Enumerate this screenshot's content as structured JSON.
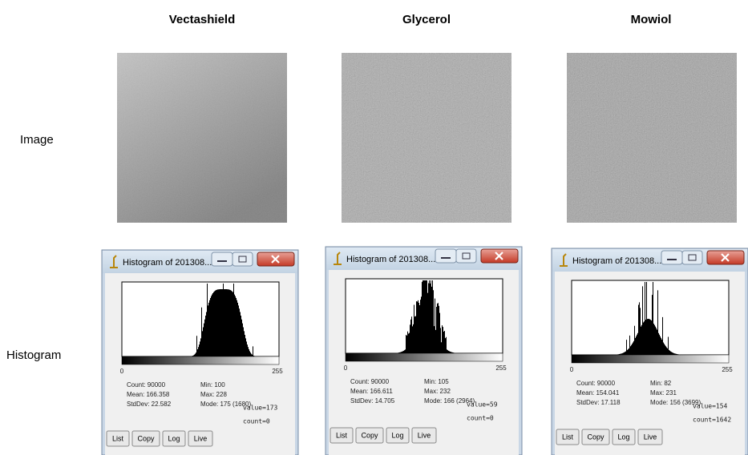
{
  "columns": [
    {
      "heading": "Vectashield",
      "histogram": {
        "window_title": "Histogram of 201308...",
        "axis_min": "0",
        "axis_max": "255",
        "stats_left": [
          "Count: 90000",
          "Mean: 166.358",
          "StdDev: 22.582"
        ],
        "stats_right": [
          "Min: 100",
          "Max: 228",
          "Mode: 175 (1680)"
        ],
        "buttons": [
          "List",
          "Copy",
          "Log",
          "Live"
        ],
        "value": "value=173",
        "count": "count=0"
      }
    },
    {
      "heading": "Glycerol",
      "histogram": {
        "window_title": "Histogram of 201308...",
        "axis_min": "0",
        "axis_max": "255",
        "stats_left": [
          "Count: 90000",
          "Mean: 166.611",
          "StdDev: 14.705"
        ],
        "stats_right": [
          "Min: 105",
          "Max: 232",
          "Mode: 166 (2964)"
        ],
        "buttons": [
          "List",
          "Copy",
          "Log",
          "Live"
        ],
        "value": "value=59",
        "count": "count=0"
      }
    },
    {
      "heading": "Mowiol",
      "histogram": {
        "window_title": "Histogram of 201308...",
        "axis_min": "0",
        "axis_max": "255",
        "stats_left": [
          "Count: 90000",
          "Mean: 154.041",
          "StdDev: 17.118"
        ],
        "stats_right": [
          "Min: 82",
          "Max: 231",
          "Mode: 156 (3699)"
        ],
        "buttons": [
          "List",
          "Copy",
          "Log",
          "Live"
        ],
        "value": "value=154",
        "count": "count=1642"
      }
    }
  ],
  "row_labels": [
    "Image",
    "Histogram"
  ]
}
